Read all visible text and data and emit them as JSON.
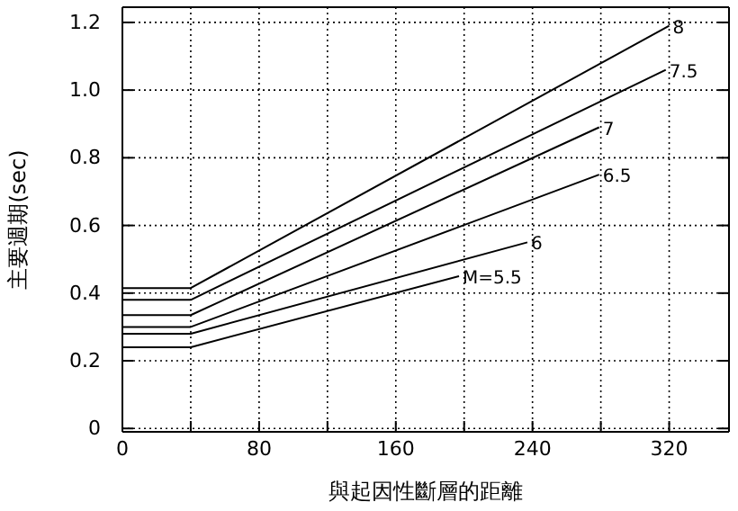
{
  "chart_data": {
    "type": "line",
    "xlabel": "與起因性斷層的距離",
    "ylabel": "主要週期(sec)",
    "xlim": [
      0,
      355
    ],
    "ylim": [
      -0.01,
      1.245
    ],
    "xticks": [
      0,
      {
        "value": 40,
        "label": null
      },
      80,
      {
        "value": 120,
        "label": null
      },
      160,
      {
        "value": 200,
        "label": null
      },
      240,
      {
        "value": 280,
        "label": null
      },
      320
    ],
    "yticks": [
      0,
      0.2,
      0.4,
      0.6,
      0.8,
      {
        "value": 1,
        "label": "1.0"
      },
      1.2
    ],
    "grid": true,
    "line_style": "solid",
    "marker": "none",
    "series": [
      {
        "name": "8",
        "color": "#000000",
        "x": [
          0,
          40,
          320
        ],
        "values": [
          0.415,
          0.415,
          1.19
        ]
      },
      {
        "name": "7.5",
        "color": "#000000",
        "x": [
          0,
          40,
          318
        ],
        "values": [
          0.38,
          0.38,
          1.06
        ]
      },
      {
        "name": "7",
        "color": "#000000",
        "x": [
          0,
          40,
          279
        ],
        "values": [
          0.335,
          0.335,
          0.89
        ]
      },
      {
        "name": "6.5",
        "color": "#000000",
        "x": [
          0,
          40,
          279
        ],
        "values": [
          0.3,
          0.3,
          0.75
        ]
      },
      {
        "name": "6",
        "color": "#000000",
        "x": [
          0,
          40,
          237
        ],
        "values": [
          0.28,
          0.28,
          0.55
        ]
      },
      {
        "name": "M=5.5",
        "color": "#000000",
        "x": [
          0,
          40,
          197
        ],
        "values": [
          0.24,
          0.24,
          0.45
        ]
      }
    ]
  }
}
